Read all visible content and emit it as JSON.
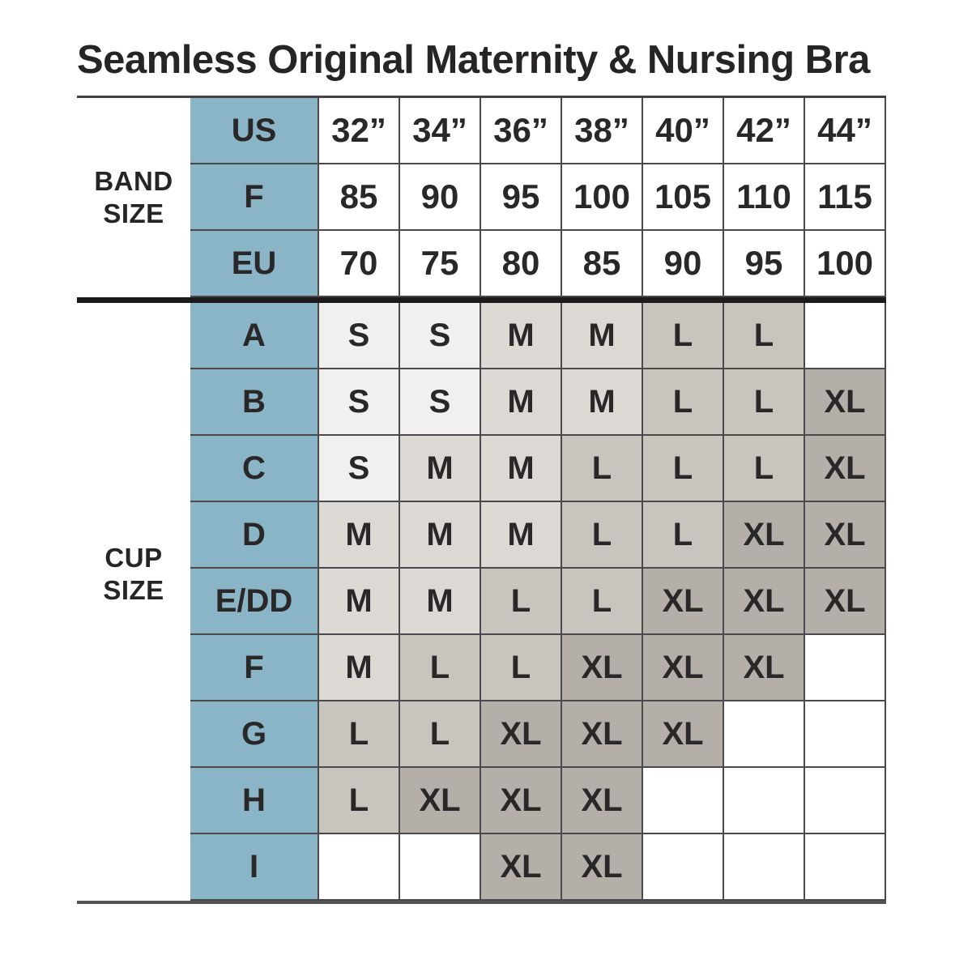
{
  "chart_data": {
    "type": "table",
    "title": "Seamless Original Maternity & Nursing Bra",
    "sections": [
      {
        "name": "BAND SIZE",
        "label_lines": [
          "BAND",
          "SIZE"
        ],
        "rows": [
          {
            "label": "US",
            "values": [
              "32”",
              "34”",
              "36”",
              "38”",
              "40”",
              "42”",
              "44”"
            ]
          },
          {
            "label": "F",
            "values": [
              "85",
              "90",
              "95",
              "100",
              "105",
              "110",
              "115"
            ]
          },
          {
            "label": "EU",
            "values": [
              "70",
              "75",
              "80",
              "85",
              "90",
              "95",
              "100"
            ]
          }
        ]
      },
      {
        "name": "CUP SIZE",
        "label_lines": [
          "CUP",
          "SIZE"
        ],
        "rows": [
          {
            "label": "A",
            "values": [
              "S",
              "S",
              "M",
              "M",
              "L",
              "L",
              ""
            ]
          },
          {
            "label": "B",
            "values": [
              "S",
              "S",
              "M",
              "M",
              "L",
              "L",
              "XL"
            ]
          },
          {
            "label": "C",
            "values": [
              "S",
              "M",
              "M",
              "L",
              "L",
              "L",
              "XL"
            ]
          },
          {
            "label": "D",
            "values": [
              "M",
              "M",
              "M",
              "L",
              "L",
              "XL",
              "XL"
            ]
          },
          {
            "label": "E/DD",
            "values": [
              "M",
              "M",
              "L",
              "L",
              "XL",
              "XL",
              "XL"
            ]
          },
          {
            "label": "F",
            "values": [
              "M",
              "L",
              "L",
              "XL",
              "XL",
              "XL",
              ""
            ]
          },
          {
            "label": "G",
            "values": [
              "L",
              "L",
              "XL",
              "XL",
              "XL",
              "",
              ""
            ]
          },
          {
            "label": "H",
            "values": [
              "L",
              "XL",
              "XL",
              "XL",
              "",
              "",
              ""
            ]
          },
          {
            "label": "I",
            "values": [
              "",
              "",
              "XL",
              "XL",
              "",
              "",
              ""
            ]
          }
        ]
      }
    ],
    "size_fill_colors": {
      "S": "#f1f0ee",
      "M": "#dcd9d5",
      "L": "#c8c5bf",
      "XL": "#b4b0a9",
      "": "#ffffff"
    },
    "accent_blue": "#8ab5c6",
    "border_color": "#4b494b",
    "text_color": "#2a2728"
  }
}
